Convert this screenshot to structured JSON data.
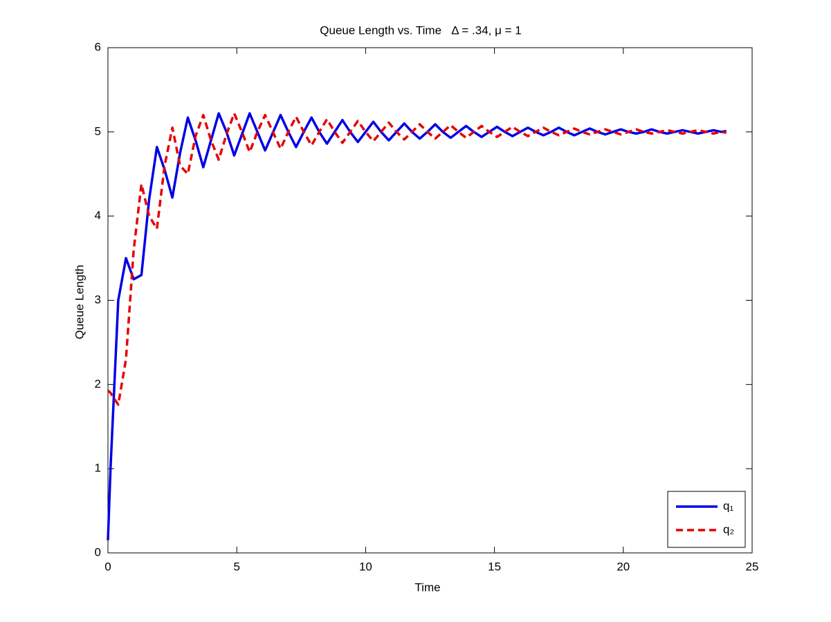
{
  "chart_data": {
    "type": "line",
    "title": "Queue Length vs. Time   Δ = .34, μ = 1",
    "x_label": "Time",
    "y_label": "Queue Length",
    "x": [
      0,
      0.1,
      0.4,
      0.7,
      1.0,
      1.3,
      1.6,
      1.9,
      2.2,
      2.5,
      2.8,
      3.1,
      3.4,
      3.7,
      4.0,
      4.3,
      4.6,
      4.9,
      5.2,
      5.5,
      5.8,
      6.1,
      6.4,
      6.7,
      7.0,
      7.3,
      7.6,
      7.9,
      8.2,
      8.5,
      8.8,
      9.1,
      9.4,
      9.7,
      10.0,
      10.3,
      10.6,
      10.9,
      11.2,
      11.5,
      11.8,
      12.1,
      12.4,
      12.7,
      13.0,
      13.3,
      13.6,
      13.9,
      14.2,
      14.5,
      14.8,
      15.1,
      15.4,
      15.7,
      16.0,
      16.3,
      16.6,
      16.9,
      17.2,
      17.5,
      17.8,
      18.1,
      18.4,
      18.7,
      19.0,
      19.3,
      19.6,
      19.9,
      20.2,
      20.5,
      20.8,
      21.1,
      21.4,
      21.7,
      22.0,
      22.3,
      22.6,
      22.9,
      23.2,
      23.5,
      23.8,
      24.0
    ],
    "series": [
      {
        "name": "q₁",
        "color": "#0000e6",
        "line_style": "solid",
        "values": [
          0.15,
          1.0,
          3.0,
          3.5,
          3.25,
          3.3,
          4.2,
          4.82,
          4.55,
          4.22,
          4.75,
          5.17,
          4.9,
          4.58,
          4.9,
          5.22,
          5.0,
          4.72,
          4.97,
          5.22,
          5.0,
          4.78,
          4.99,
          5.2,
          5.0,
          4.82,
          5.0,
          5.17,
          5.0,
          4.86,
          5.0,
          5.14,
          5.0,
          4.88,
          5.0,
          5.12,
          5.0,
          4.9,
          5.0,
          5.1,
          5.0,
          4.92,
          5.0,
          5.09,
          5.0,
          4.93,
          5.0,
          5.07,
          5.0,
          4.94,
          5.0,
          5.06,
          5.0,
          4.95,
          5.0,
          5.05,
          5.0,
          4.96,
          5.0,
          5.05,
          5.0,
          4.96,
          5.0,
          5.04,
          5.0,
          4.97,
          5.0,
          5.03,
          5.0,
          4.98,
          5.0,
          5.03,
          5.0,
          4.98,
          5.0,
          5.02,
          5.0,
          4.98,
          5.0,
          5.02,
          5.0,
          5.01
        ]
      },
      {
        "name": "q₂",
        "color": "#e60000",
        "line_style": "dashed",
        "values": [
          1.93,
          1.9,
          1.76,
          2.3,
          3.6,
          4.38,
          4.0,
          3.85,
          4.6,
          5.05,
          4.6,
          4.5,
          4.95,
          5.2,
          4.9,
          4.67,
          4.97,
          5.22,
          5.0,
          4.76,
          5.0,
          5.2,
          5.0,
          4.8,
          5.0,
          5.18,
          5.0,
          4.84,
          5.0,
          5.15,
          5.0,
          4.87,
          5.0,
          5.13,
          5.0,
          4.89,
          5.0,
          5.11,
          5.0,
          4.91,
          5.0,
          5.09,
          5.0,
          4.92,
          5.0,
          5.08,
          5.0,
          4.93,
          5.0,
          5.07,
          5.0,
          4.94,
          5.0,
          5.06,
          5.0,
          4.95,
          5.0,
          5.05,
          5.0,
          4.96,
          5.0,
          5.04,
          5.0,
          4.97,
          5.0,
          5.03,
          5.0,
          4.97,
          5.0,
          5.03,
          5.0,
          4.98,
          5.0,
          5.02,
          5.0,
          4.98,
          5.0,
          5.02,
          5.0,
          4.98,
          5.0,
          4.99
        ]
      }
    ],
    "xlim": [
      0,
      25
    ],
    "xticks": [
      0,
      5,
      10,
      15,
      20,
      25
    ],
    "ylim": [
      0,
      6
    ],
    "yticks": [
      0,
      1,
      2,
      3,
      4,
      5,
      6
    ],
    "grid": false,
    "legend_position": "lower right"
  }
}
